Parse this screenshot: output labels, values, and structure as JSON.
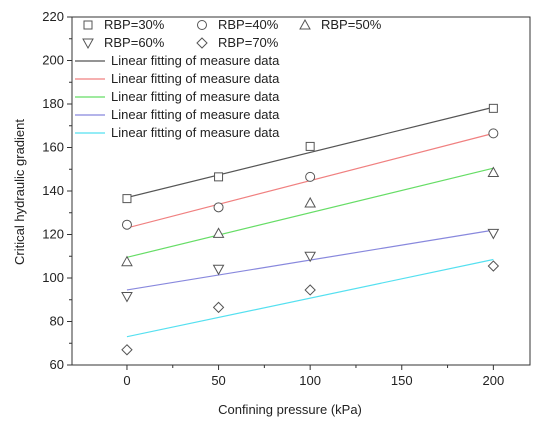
{
  "chart_data": {
    "type": "scatter",
    "xlabel": "Confining pressure (kPa)",
    "ylabel": "Critical hydraulic gradient",
    "xlim": [
      -30,
      220
    ],
    "ylim": [
      60,
      220
    ],
    "x_ticks": [
      0,
      50,
      100,
      150,
      200
    ],
    "y_ticks": [
      60,
      80,
      100,
      120,
      140,
      160,
      180,
      200,
      220
    ],
    "x_tick_labels": [
      "0",
      "50",
      "100",
      "150",
      "200"
    ],
    "y_tick_labels": [
      "60",
      "80",
      "100",
      "120",
      "140",
      "160",
      "180",
      "200",
      "220"
    ],
    "legend_position": "top-left",
    "grid": false,
    "series": [
      {
        "name": "RBP=30%",
        "marker": "square",
        "x": [
          0,
          50,
          100,
          200
        ],
        "y": [
          136.5,
          146.5,
          160.5,
          178
        ]
      },
      {
        "name": "RBP=40%",
        "marker": "circle",
        "x": [
          0,
          50,
          100,
          200
        ],
        "y": [
          124.5,
          132.5,
          146.5,
          166.5
        ]
      },
      {
        "name": "RBP=50%",
        "marker": "triangle-up",
        "x": [
          0,
          50,
          100,
          200
        ],
        "y": [
          107.5,
          120.5,
          134.5,
          148.5
        ]
      },
      {
        "name": "RBP=60%",
        "marker": "triangle-down",
        "x": [
          0,
          50,
          100,
          200
        ],
        "y": [
          91.5,
          104,
          110,
          120.5
        ]
      },
      {
        "name": "RBP=70%",
        "marker": "diamond",
        "x": [
          0,
          50,
          100,
          200
        ],
        "y": [
          67,
          86.5,
          94.5,
          105.5
        ]
      }
    ],
    "fit_lines": [
      {
        "name": "Linear fitting of measure data",
        "color": "#555555",
        "x": [
          0,
          200
        ],
        "y": [
          137,
          178.5
        ]
      },
      {
        "name": "Linear fitting of measure data",
        "color": "#f08080",
        "x": [
          0,
          200
        ],
        "y": [
          123,
          166.5
        ]
      },
      {
        "name": "Linear fitting of measure data",
        "color": "#66dd66",
        "x": [
          0,
          200
        ],
        "y": [
          109.5,
          150.5
        ]
      },
      {
        "name": "Linear fitting of measure data",
        "color": "#8888dd",
        "x": [
          0,
          200
        ],
        "y": [
          94.5,
          122
        ]
      },
      {
        "name": "Linear fitting of measure data",
        "color": "#55e0f0",
        "x": [
          0,
          200
        ],
        "y": [
          73,
          108.5
        ]
      }
    ],
    "marker_color": "#555555"
  }
}
